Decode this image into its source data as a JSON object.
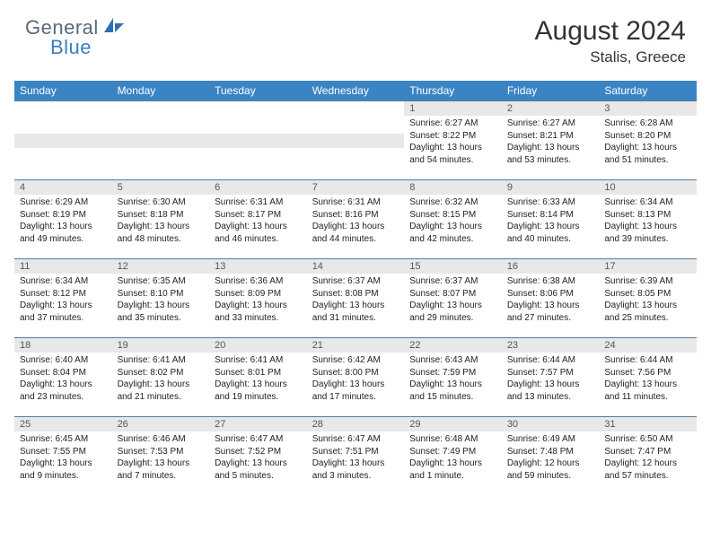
{
  "logo": {
    "general": "General",
    "blue": "Blue"
  },
  "title": "August 2024",
  "location": "Stalis, Greece",
  "colors": {
    "header_bg": "#3b84c4",
    "daynum_bg": "#e8e8e8",
    "border": "#5a7a9a",
    "text": "#222222",
    "logo_gray": "#5a6a78",
    "logo_blue": "#3b7ec0"
  },
  "dow": [
    "Sunday",
    "Monday",
    "Tuesday",
    "Wednesday",
    "Thursday",
    "Friday",
    "Saturday"
  ],
  "weeks": [
    [
      null,
      null,
      null,
      null,
      {
        "n": "1",
        "sr": "6:27 AM",
        "ss": "8:22 PM",
        "dl": "13 hours and 54 minutes."
      },
      {
        "n": "2",
        "sr": "6:27 AM",
        "ss": "8:21 PM",
        "dl": "13 hours and 53 minutes."
      },
      {
        "n": "3",
        "sr": "6:28 AM",
        "ss": "8:20 PM",
        "dl": "13 hours and 51 minutes."
      }
    ],
    [
      {
        "n": "4",
        "sr": "6:29 AM",
        "ss": "8:19 PM",
        "dl": "13 hours and 49 minutes."
      },
      {
        "n": "5",
        "sr": "6:30 AM",
        "ss": "8:18 PM",
        "dl": "13 hours and 48 minutes."
      },
      {
        "n": "6",
        "sr": "6:31 AM",
        "ss": "8:17 PM",
        "dl": "13 hours and 46 minutes."
      },
      {
        "n": "7",
        "sr": "6:31 AM",
        "ss": "8:16 PM",
        "dl": "13 hours and 44 minutes."
      },
      {
        "n": "8",
        "sr": "6:32 AM",
        "ss": "8:15 PM",
        "dl": "13 hours and 42 minutes."
      },
      {
        "n": "9",
        "sr": "6:33 AM",
        "ss": "8:14 PM",
        "dl": "13 hours and 40 minutes."
      },
      {
        "n": "10",
        "sr": "6:34 AM",
        "ss": "8:13 PM",
        "dl": "13 hours and 39 minutes."
      }
    ],
    [
      {
        "n": "11",
        "sr": "6:34 AM",
        "ss": "8:12 PM",
        "dl": "13 hours and 37 minutes."
      },
      {
        "n": "12",
        "sr": "6:35 AM",
        "ss": "8:10 PM",
        "dl": "13 hours and 35 minutes."
      },
      {
        "n": "13",
        "sr": "6:36 AM",
        "ss": "8:09 PM",
        "dl": "13 hours and 33 minutes."
      },
      {
        "n": "14",
        "sr": "6:37 AM",
        "ss": "8:08 PM",
        "dl": "13 hours and 31 minutes."
      },
      {
        "n": "15",
        "sr": "6:37 AM",
        "ss": "8:07 PM",
        "dl": "13 hours and 29 minutes."
      },
      {
        "n": "16",
        "sr": "6:38 AM",
        "ss": "8:06 PM",
        "dl": "13 hours and 27 minutes."
      },
      {
        "n": "17",
        "sr": "6:39 AM",
        "ss": "8:05 PM",
        "dl": "13 hours and 25 minutes."
      }
    ],
    [
      {
        "n": "18",
        "sr": "6:40 AM",
        "ss": "8:04 PM",
        "dl": "13 hours and 23 minutes."
      },
      {
        "n": "19",
        "sr": "6:41 AM",
        "ss": "8:02 PM",
        "dl": "13 hours and 21 minutes."
      },
      {
        "n": "20",
        "sr": "6:41 AM",
        "ss": "8:01 PM",
        "dl": "13 hours and 19 minutes."
      },
      {
        "n": "21",
        "sr": "6:42 AM",
        "ss": "8:00 PM",
        "dl": "13 hours and 17 minutes."
      },
      {
        "n": "22",
        "sr": "6:43 AM",
        "ss": "7:59 PM",
        "dl": "13 hours and 15 minutes."
      },
      {
        "n": "23",
        "sr": "6:44 AM",
        "ss": "7:57 PM",
        "dl": "13 hours and 13 minutes."
      },
      {
        "n": "24",
        "sr": "6:44 AM",
        "ss": "7:56 PM",
        "dl": "13 hours and 11 minutes."
      }
    ],
    [
      {
        "n": "25",
        "sr": "6:45 AM",
        "ss": "7:55 PM",
        "dl": "13 hours and 9 minutes."
      },
      {
        "n": "26",
        "sr": "6:46 AM",
        "ss": "7:53 PM",
        "dl": "13 hours and 7 minutes."
      },
      {
        "n": "27",
        "sr": "6:47 AM",
        "ss": "7:52 PM",
        "dl": "13 hours and 5 minutes."
      },
      {
        "n": "28",
        "sr": "6:47 AM",
        "ss": "7:51 PM",
        "dl": "13 hours and 3 minutes."
      },
      {
        "n": "29",
        "sr": "6:48 AM",
        "ss": "7:49 PM",
        "dl": "13 hours and 1 minute."
      },
      {
        "n": "30",
        "sr": "6:49 AM",
        "ss": "7:48 PM",
        "dl": "12 hours and 59 minutes."
      },
      {
        "n": "31",
        "sr": "6:50 AM",
        "ss": "7:47 PM",
        "dl": "12 hours and 57 minutes."
      }
    ]
  ],
  "labels": {
    "sunrise": "Sunrise:",
    "sunset": "Sunset:",
    "daylight": "Daylight:"
  }
}
